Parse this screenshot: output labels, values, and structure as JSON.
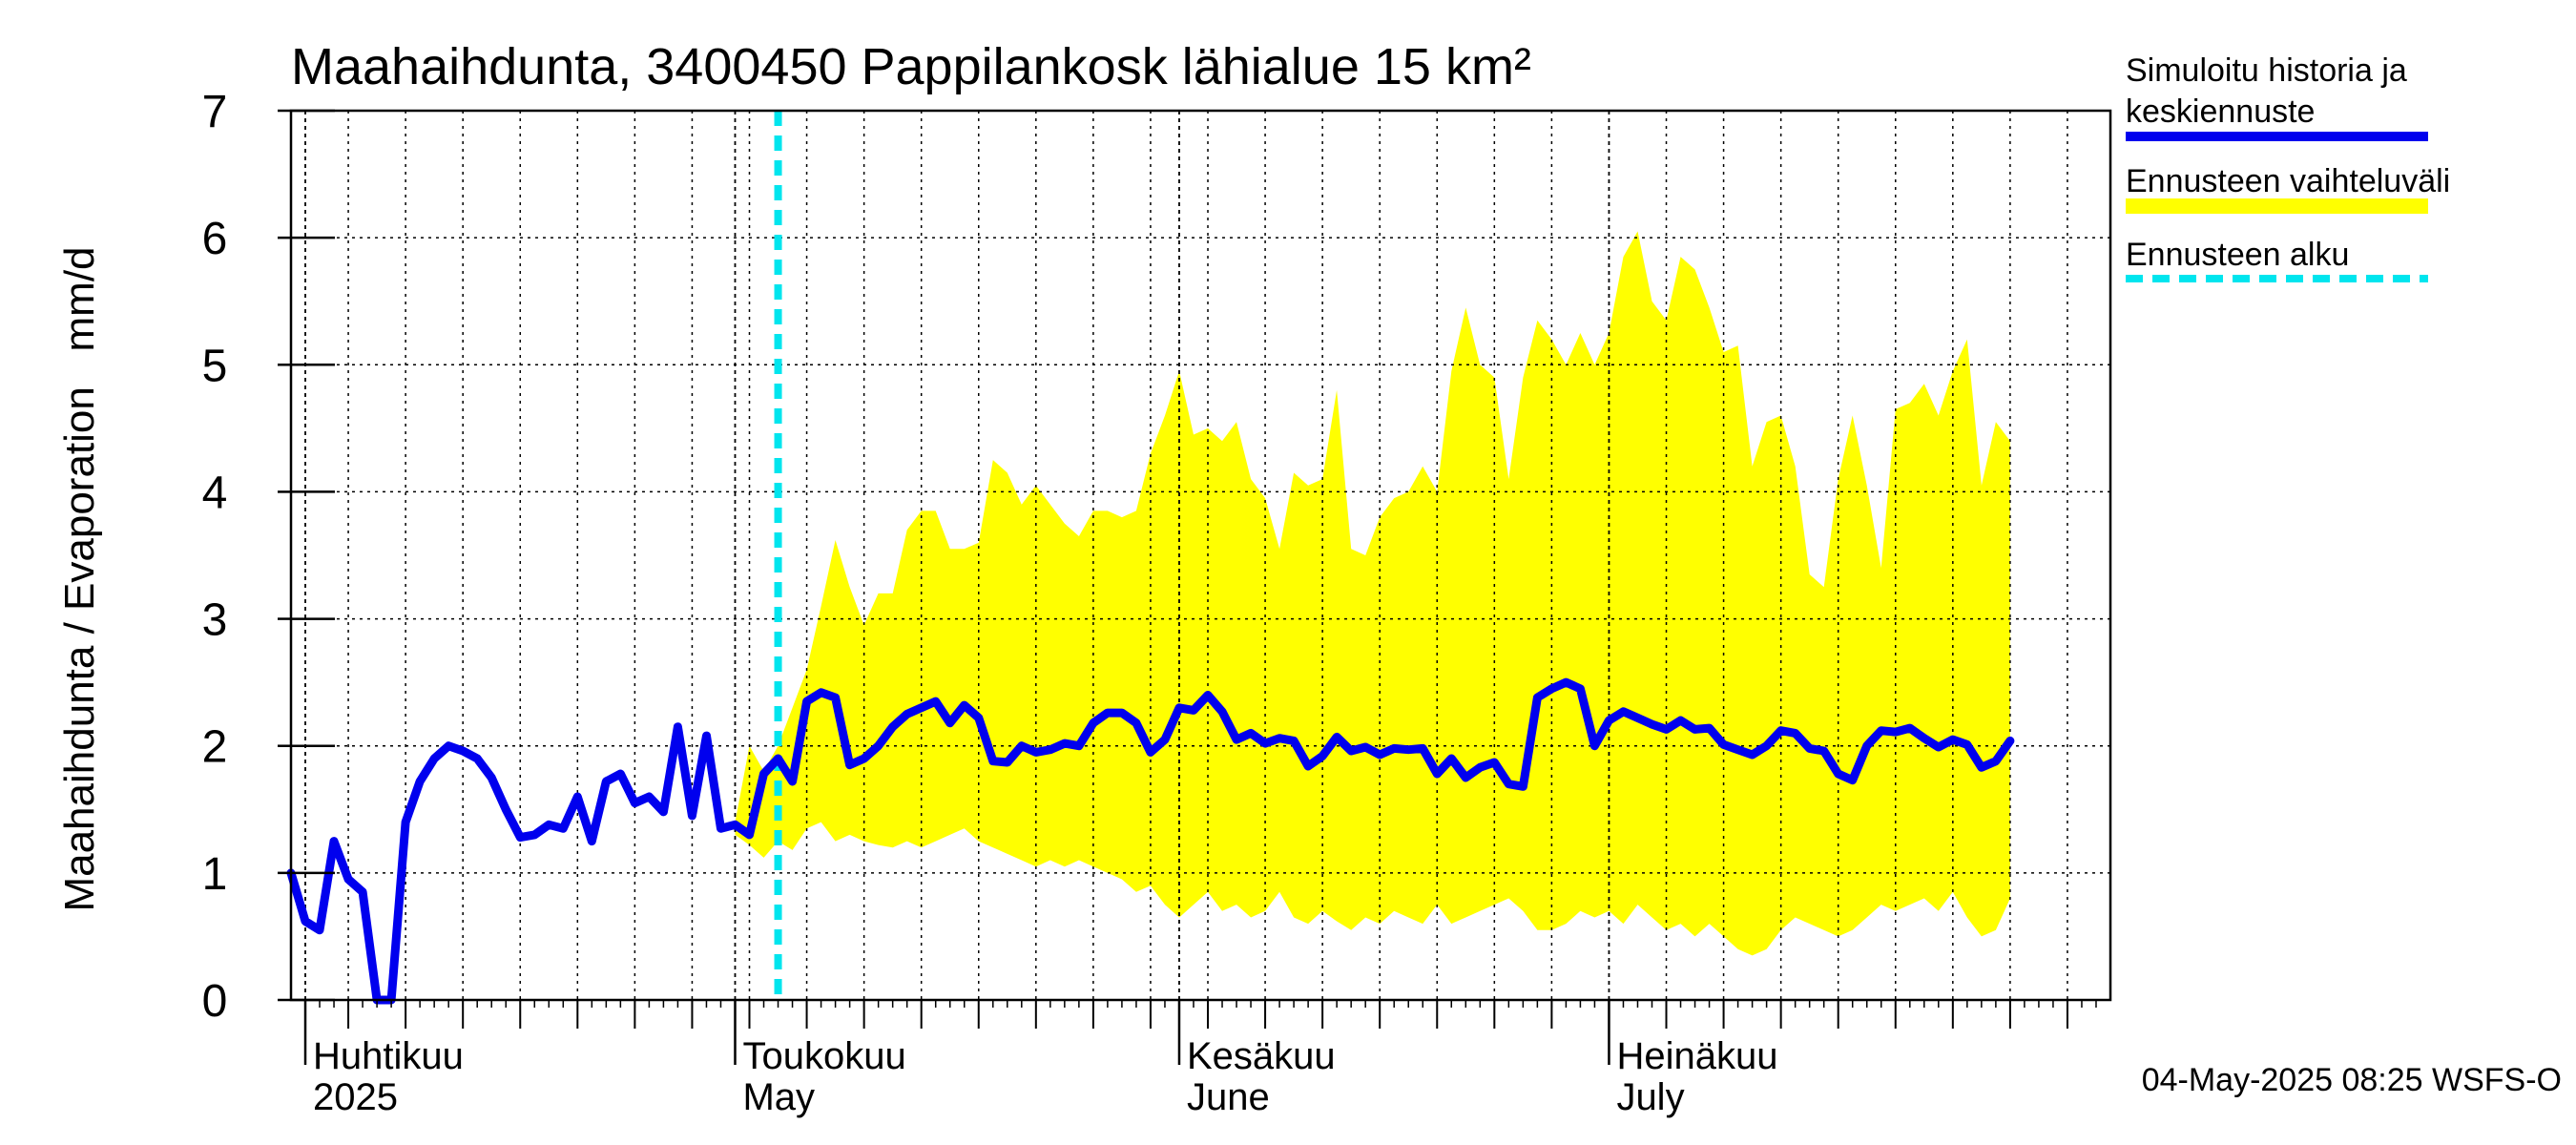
{
  "chart_data": {
    "type": "line",
    "title": "Maahaihdunta, 3400450 Pappilankosk lähialue 15 km²",
    "ylabel": "Maahaihdunta / Evaporation   mm/d",
    "ylim": [
      0,
      7
    ],
    "yticks": [
      0,
      1,
      2,
      3,
      4,
      5,
      6,
      7
    ],
    "xlim": [
      "2025-03-31",
      "2025-08-05"
    ],
    "grid": true,
    "months": [
      {
        "date": "2025-04-01",
        "fi": "Huhtikuu",
        "en": "2025"
      },
      {
        "date": "2025-05-01",
        "fi": "Toukokuu",
        "en": "May"
      },
      {
        "date": "2025-06-01",
        "fi": "Kesäkuu",
        "en": "June"
      },
      {
        "date": "2025-07-01",
        "fi": "Heinäkuu",
        "en": "July"
      }
    ],
    "forecast_start": "2025-05-04",
    "series": [
      {
        "name": "Simuloitu historia ja keskiennuste",
        "color": "#0000ee",
        "points": [
          [
            "2025-03-31",
            1.0
          ],
          [
            "2025-04-01",
            0.62
          ],
          [
            "2025-04-02",
            0.55
          ],
          [
            "2025-04-03",
            1.25
          ],
          [
            "2025-04-04",
            0.95
          ],
          [
            "2025-04-05",
            0.85
          ],
          [
            "2025-04-06",
            0.0
          ],
          [
            "2025-04-07",
            0.0
          ],
          [
            "2025-04-08",
            1.4
          ],
          [
            "2025-04-09",
            1.72
          ],
          [
            "2025-04-10",
            1.9
          ],
          [
            "2025-04-11",
            2.0
          ],
          [
            "2025-04-12",
            1.96
          ],
          [
            "2025-04-13",
            1.9
          ],
          [
            "2025-04-14",
            1.75
          ],
          [
            "2025-04-15",
            1.5
          ],
          [
            "2025-04-16",
            1.28
          ],
          [
            "2025-04-17",
            1.3
          ],
          [
            "2025-04-18",
            1.38
          ],
          [
            "2025-04-19",
            1.35
          ],
          [
            "2025-04-20",
            1.6
          ],
          [
            "2025-04-21",
            1.25
          ],
          [
            "2025-04-22",
            1.72
          ],
          [
            "2025-04-23",
            1.78
          ],
          [
            "2025-04-24",
            1.55
          ],
          [
            "2025-04-25",
            1.6
          ],
          [
            "2025-04-26",
            1.48
          ],
          [
            "2025-04-27",
            2.15
          ],
          [
            "2025-04-28",
            1.45
          ],
          [
            "2025-04-29",
            2.08
          ],
          [
            "2025-04-30",
            1.35
          ],
          [
            "2025-05-01",
            1.38
          ],
          [
            "2025-05-02",
            1.3
          ],
          [
            "2025-05-03",
            1.78
          ],
          [
            "2025-05-04",
            1.9
          ],
          [
            "2025-05-05",
            1.72
          ],
          [
            "2025-05-06",
            2.35
          ],
          [
            "2025-05-07",
            2.42
          ],
          [
            "2025-05-08",
            2.38
          ],
          [
            "2025-05-09",
            1.85
          ],
          [
            "2025-05-10",
            1.9
          ],
          [
            "2025-05-11",
            2.0
          ],
          [
            "2025-05-12",
            2.15
          ],
          [
            "2025-05-13",
            2.25
          ],
          [
            "2025-05-14",
            2.3
          ],
          [
            "2025-05-15",
            2.35
          ],
          [
            "2025-05-16",
            2.18
          ],
          [
            "2025-05-17",
            2.32
          ],
          [
            "2025-05-18",
            2.22
          ],
          [
            "2025-05-19",
            1.88
          ],
          [
            "2025-05-20",
            1.87
          ],
          [
            "2025-05-21",
            2.0
          ],
          [
            "2025-05-22",
            1.95
          ],
          [
            "2025-05-23",
            1.97
          ],
          [
            "2025-05-24",
            2.02
          ],
          [
            "2025-05-25",
            2.0
          ],
          [
            "2025-05-26",
            2.18
          ],
          [
            "2025-05-27",
            2.26
          ],
          [
            "2025-05-28",
            2.26
          ],
          [
            "2025-05-29",
            2.18
          ],
          [
            "2025-05-30",
            1.95
          ],
          [
            "2025-05-31",
            2.05
          ],
          [
            "2025-06-01",
            2.3
          ],
          [
            "2025-06-02",
            2.28
          ],
          [
            "2025-06-03",
            2.4
          ],
          [
            "2025-06-04",
            2.27
          ],
          [
            "2025-06-05",
            2.05
          ],
          [
            "2025-06-06",
            2.1
          ],
          [
            "2025-06-07",
            2.02
          ],
          [
            "2025-06-08",
            2.06
          ],
          [
            "2025-06-09",
            2.04
          ],
          [
            "2025-06-10",
            1.84
          ],
          [
            "2025-06-11",
            1.92
          ],
          [
            "2025-06-12",
            2.07
          ],
          [
            "2025-06-13",
            1.96
          ],
          [
            "2025-06-14",
            1.99
          ],
          [
            "2025-06-15",
            1.93
          ],
          [
            "2025-06-16",
            1.98
          ],
          [
            "2025-06-17",
            1.97
          ],
          [
            "2025-06-18",
            1.98
          ],
          [
            "2025-06-19",
            1.78
          ],
          [
            "2025-06-20",
            1.9
          ],
          [
            "2025-06-21",
            1.75
          ],
          [
            "2025-06-22",
            1.83
          ],
          [
            "2025-06-23",
            1.87
          ],
          [
            "2025-06-24",
            1.7
          ],
          [
            "2025-06-25",
            1.68
          ],
          [
            "2025-06-26",
            2.38
          ],
          [
            "2025-06-27",
            2.45
          ],
          [
            "2025-06-28",
            2.5
          ],
          [
            "2025-06-29",
            2.45
          ],
          [
            "2025-06-30",
            2.0
          ],
          [
            "2025-07-01",
            2.2
          ],
          [
            "2025-07-02",
            2.27
          ],
          [
            "2025-07-03",
            2.22
          ],
          [
            "2025-07-04",
            2.17
          ],
          [
            "2025-07-05",
            2.13
          ],
          [
            "2025-07-06",
            2.2
          ],
          [
            "2025-07-07",
            2.13
          ],
          [
            "2025-07-08",
            2.14
          ],
          [
            "2025-07-09",
            2.01
          ],
          [
            "2025-07-10",
            1.97
          ],
          [
            "2025-07-11",
            1.93
          ],
          [
            "2025-07-12",
            2.0
          ],
          [
            "2025-07-13",
            2.12
          ],
          [
            "2025-07-14",
            2.1
          ],
          [
            "2025-07-15",
            1.98
          ],
          [
            "2025-07-16",
            1.96
          ],
          [
            "2025-07-17",
            1.78
          ],
          [
            "2025-07-18",
            1.73
          ],
          [
            "2025-07-19",
            2.0
          ],
          [
            "2025-07-20",
            2.12
          ],
          [
            "2025-07-21",
            2.11
          ],
          [
            "2025-07-22",
            2.14
          ],
          [
            "2025-07-23",
            2.06
          ],
          [
            "2025-07-24",
            1.99
          ],
          [
            "2025-07-25",
            2.05
          ],
          [
            "2025-07-26",
            2.01
          ],
          [
            "2025-07-27",
            1.83
          ],
          [
            "2025-07-28",
            1.88
          ],
          [
            "2025-07-29",
            2.04
          ]
        ]
      },
      {
        "name": "Ennusteen vaihteluväli",
        "color": "#ffff00",
        "band": [
          [
            "2025-05-01",
            1.3,
            1.4
          ],
          [
            "2025-05-02",
            1.22,
            2.0
          ],
          [
            "2025-05-03",
            1.12,
            1.8
          ],
          [
            "2025-05-04",
            1.25,
            2.0
          ],
          [
            "2025-05-05",
            1.18,
            2.3
          ],
          [
            "2025-05-06",
            1.35,
            2.6
          ],
          [
            "2025-05-07",
            1.4,
            3.1
          ],
          [
            "2025-05-08",
            1.25,
            3.62
          ],
          [
            "2025-05-09",
            1.3,
            3.25
          ],
          [
            "2025-05-10",
            1.25,
            2.95
          ],
          [
            "2025-05-11",
            1.22,
            3.2
          ],
          [
            "2025-05-12",
            1.2,
            3.2
          ],
          [
            "2025-05-13",
            1.25,
            3.7
          ],
          [
            "2025-05-14",
            1.2,
            3.85
          ],
          [
            "2025-05-15",
            1.25,
            3.85
          ],
          [
            "2025-05-16",
            1.3,
            3.55
          ],
          [
            "2025-05-17",
            1.35,
            3.55
          ],
          [
            "2025-05-18",
            1.25,
            3.6
          ],
          [
            "2025-05-19",
            1.2,
            4.25
          ],
          [
            "2025-05-20",
            1.15,
            4.15
          ],
          [
            "2025-05-21",
            1.1,
            3.9
          ],
          [
            "2025-05-22",
            1.05,
            4.05
          ],
          [
            "2025-05-23",
            1.1,
            3.9
          ],
          [
            "2025-05-24",
            1.05,
            3.75
          ],
          [
            "2025-05-25",
            1.1,
            3.65
          ],
          [
            "2025-05-26",
            1.05,
            3.85
          ],
          [
            "2025-05-27",
            1.0,
            3.85
          ],
          [
            "2025-05-28",
            0.95,
            3.8
          ],
          [
            "2025-05-29",
            0.85,
            3.85
          ],
          [
            "2025-05-30",
            0.9,
            4.3
          ],
          [
            "2025-05-31",
            0.75,
            4.6
          ],
          [
            "2025-06-01",
            0.65,
            4.95
          ],
          [
            "2025-06-02",
            0.75,
            4.45
          ],
          [
            "2025-06-03",
            0.85,
            4.5
          ],
          [
            "2025-06-04",
            0.7,
            4.4
          ],
          [
            "2025-06-05",
            0.75,
            4.55
          ],
          [
            "2025-06-06",
            0.65,
            4.1
          ],
          [
            "2025-06-07",
            0.7,
            3.95
          ],
          [
            "2025-06-08",
            0.85,
            3.55
          ],
          [
            "2025-06-09",
            0.65,
            4.15
          ],
          [
            "2025-06-10",
            0.6,
            4.05
          ],
          [
            "2025-06-11",
            0.7,
            4.1
          ],
          [
            "2025-06-12",
            0.62,
            4.8
          ],
          [
            "2025-06-13",
            0.55,
            3.55
          ],
          [
            "2025-06-14",
            0.65,
            3.5
          ],
          [
            "2025-06-15",
            0.6,
            3.8
          ],
          [
            "2025-06-16",
            0.7,
            3.95
          ],
          [
            "2025-06-17",
            0.65,
            4.0
          ],
          [
            "2025-06-18",
            0.6,
            4.2
          ],
          [
            "2025-06-19",
            0.75,
            4.0
          ],
          [
            "2025-06-20",
            0.6,
            4.95
          ],
          [
            "2025-06-21",
            0.65,
            5.45
          ],
          [
            "2025-06-22",
            0.7,
            5.0
          ],
          [
            "2025-06-23",
            0.75,
            4.9
          ],
          [
            "2025-06-24",
            0.8,
            4.1
          ],
          [
            "2025-06-25",
            0.7,
            4.9
          ],
          [
            "2025-06-26",
            0.55,
            5.35
          ],
          [
            "2025-06-27",
            0.55,
            5.2
          ],
          [
            "2025-06-28",
            0.6,
            5.0
          ],
          [
            "2025-06-29",
            0.7,
            5.25
          ],
          [
            "2025-06-30",
            0.65,
            5.0
          ],
          [
            "2025-07-01",
            0.7,
            5.25
          ],
          [
            "2025-07-02",
            0.6,
            5.85
          ],
          [
            "2025-07-03",
            0.75,
            6.05
          ],
          [
            "2025-07-04",
            0.65,
            5.5
          ],
          [
            "2025-07-05",
            0.55,
            5.35
          ],
          [
            "2025-07-06",
            0.6,
            5.85
          ],
          [
            "2025-07-07",
            0.5,
            5.75
          ],
          [
            "2025-07-08",
            0.6,
            5.45
          ],
          [
            "2025-07-09",
            0.5,
            5.1
          ],
          [
            "2025-07-10",
            0.4,
            5.15
          ],
          [
            "2025-07-11",
            0.35,
            4.2
          ],
          [
            "2025-07-12",
            0.4,
            4.55
          ],
          [
            "2025-07-13",
            0.55,
            4.6
          ],
          [
            "2025-07-14",
            0.65,
            4.2
          ],
          [
            "2025-07-15",
            0.6,
            3.35
          ],
          [
            "2025-07-16",
            0.55,
            3.25
          ],
          [
            "2025-07-17",
            0.5,
            4.1
          ],
          [
            "2025-07-18",
            0.55,
            4.6
          ],
          [
            "2025-07-19",
            0.65,
            4.05
          ],
          [
            "2025-07-20",
            0.75,
            3.4
          ],
          [
            "2025-07-21",
            0.7,
            4.65
          ],
          [
            "2025-07-22",
            0.75,
            4.7
          ],
          [
            "2025-07-23",
            0.8,
            4.85
          ],
          [
            "2025-07-24",
            0.7,
            4.6
          ],
          [
            "2025-07-25",
            0.85,
            4.95
          ],
          [
            "2025-07-26",
            0.65,
            5.2
          ],
          [
            "2025-07-27",
            0.5,
            4.05
          ],
          [
            "2025-07-28",
            0.55,
            4.55
          ],
          [
            "2025-07-29",
            0.8,
            4.4
          ]
        ]
      },
      {
        "name": "Ennusteen alku",
        "color": "#00e5ee"
      }
    ],
    "legend": {
      "placement": "right"
    },
    "footer": "04-May-2025 08:25 WSFS-O"
  }
}
